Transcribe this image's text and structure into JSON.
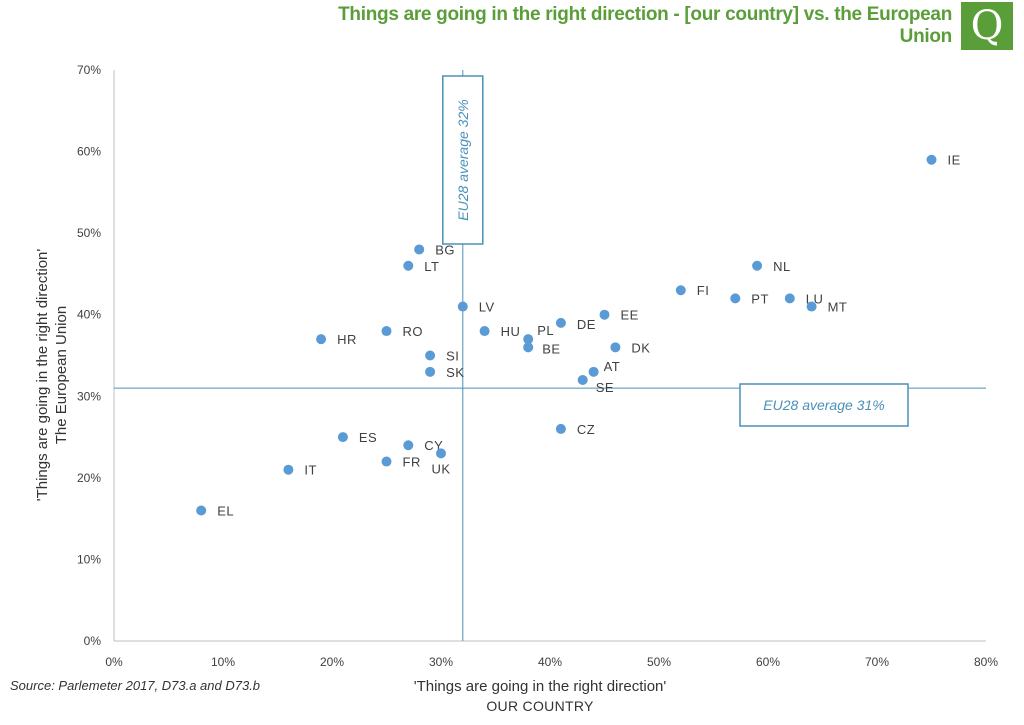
{
  "header": {
    "title": "Things are going in the right direction - [our country] vs. the European Union",
    "logo_letter": "Q"
  },
  "colors": {
    "brand": "#5a9e3a",
    "point": "#5b9bd5",
    "reference": "#4a90b8",
    "axis": "#bfbfbf",
    "text": "#404040"
  },
  "source": "Source: Parlemeter 2017, D73.a and D73.b",
  "chart_data": {
    "type": "scatter",
    "title": "Things are going in the right direction - [our country] vs. the European Union",
    "xlabel": [
      "'Things are going in the right direction'",
      "OUR COUNTRY"
    ],
    "ylabel": [
      "'Things are going in the right direction'",
      "The European Union"
    ],
    "xlim": [
      0,
      80
    ],
    "ylim": [
      0,
      70
    ],
    "x_ticks": [
      "0%",
      "10%",
      "20%",
      "30%",
      "40%",
      "50%",
      "60%",
      "70%",
      "80%"
    ],
    "y_ticks": [
      "0%",
      "10%",
      "20%",
      "30%",
      "40%",
      "50%",
      "60%",
      "70%"
    ],
    "grid": false,
    "points": [
      {
        "label": "IE",
        "x": 75,
        "y": 59
      },
      {
        "label": "BG",
        "x": 28,
        "y": 48
      },
      {
        "label": "LT",
        "x": 27,
        "y": 46
      },
      {
        "label": "NL",
        "x": 59,
        "y": 46
      },
      {
        "label": "FI",
        "x": 52,
        "y": 43
      },
      {
        "label": "PT",
        "x": 57,
        "y": 42
      },
      {
        "label": "LU",
        "x": 62,
        "y": 42
      },
      {
        "label": "MT",
        "x": 64,
        "y": 41
      },
      {
        "label": "LV",
        "x": 32,
        "y": 41
      },
      {
        "label": "EE",
        "x": 45,
        "y": 40
      },
      {
        "label": "DE",
        "x": 41,
        "y": 39
      },
      {
        "label": "RO",
        "x": 25,
        "y": 38
      },
      {
        "label": "HU",
        "x": 34,
        "y": 38
      },
      {
        "label": "HR",
        "x": 19,
        "y": 37
      },
      {
        "label": "PL",
        "x": 38,
        "y": 37
      },
      {
        "label": "BE",
        "x": 38,
        "y": 36
      },
      {
        "label": "DK",
        "x": 46,
        "y": 36
      },
      {
        "label": "SI",
        "x": 29,
        "y": 35
      },
      {
        "label": "SK",
        "x": 29,
        "y": 33
      },
      {
        "label": "AT",
        "x": 44,
        "y": 33
      },
      {
        "label": "SE",
        "x": 43,
        "y": 32
      },
      {
        "label": "CZ",
        "x": 41,
        "y": 26
      },
      {
        "label": "ES",
        "x": 21,
        "y": 25
      },
      {
        "label": "CY",
        "x": 27,
        "y": 24
      },
      {
        "label": "UK",
        "x": 30,
        "y": 23
      },
      {
        "label": "FR",
        "x": 25,
        "y": 22
      },
      {
        "label": "IT",
        "x": 16,
        "y": 21
      },
      {
        "label": "EL",
        "x": 8,
        "y": 16
      }
    ],
    "reference_lines": [
      {
        "axis": "x",
        "value": 32,
        "label": "EU28 average 32%"
      },
      {
        "axis": "y",
        "value": 31,
        "label": "EU28 average 31%"
      }
    ]
  }
}
